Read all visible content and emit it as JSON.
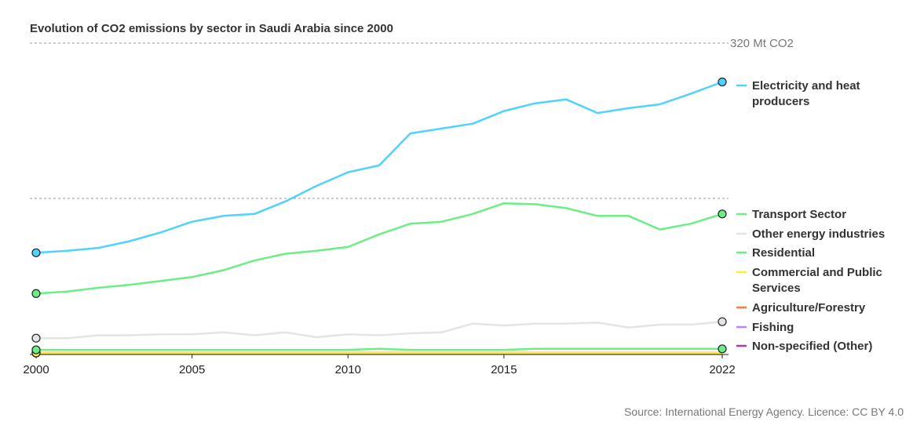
{
  "title": "Evolution of CO2 emissions by sector in Saudi Arabia since 2000",
  "source": "Source: International Energy Agency. Licence: CC BY 4.0",
  "chart_data": {
    "type": "line",
    "title": "Evolution of CO2 emissions by sector in Saudi Arabia since 2000",
    "xlim": [
      2000,
      2022
    ],
    "ylim": [
      0,
      320
    ],
    "y_max_label": "320 Mt CO2",
    "gridlines_y": [
      160,
      320
    ],
    "grid": "horizontal dotted",
    "legend_position": "right",
    "x_ticks": [
      "2000",
      "2005",
      "2010",
      "2015",
      "2022"
    ],
    "x": [
      2000,
      2001,
      2002,
      2003,
      2004,
      2005,
      2006,
      2007,
      2008,
      2009,
      2010,
      2011,
      2012,
      2013,
      2014,
      2015,
      2016,
      2017,
      2018,
      2019,
      2020,
      2021,
      2022
    ],
    "series": [
      {
        "name": "Electricity and heat producers",
        "color": "#4fd2ff",
        "values": [
          104,
          106,
          109,
          116,
          125,
          136,
          142,
          144,
          157,
          173,
          187,
          194,
          227,
          232,
          237,
          250,
          258,
          262,
          248,
          253,
          257,
          268,
          280
        ]
      },
      {
        "name": "Transport Sector",
        "color": "#6bee85",
        "values": [
          62,
          64,
          68,
          71,
          75,
          79,
          86,
          96,
          103,
          106,
          110,
          123,
          134,
          136,
          144,
          155,
          154,
          150,
          142,
          142,
          128,
          134,
          144
        ]
      },
      {
        "name": "Other energy industries",
        "color": "#e4e4e4",
        "values": [
          16,
          16,
          19,
          19,
          20,
          20,
          22,
          19,
          22,
          17,
          20,
          19,
          21,
          22,
          31,
          29,
          31,
          31,
          32,
          27,
          30,
          30,
          33
        ]
      },
      {
        "name": "Residential",
        "color": "#6bee85",
        "values": [
          4,
          4,
          4,
          4,
          4,
          4,
          4,
          4,
          4,
          4,
          4,
          5,
          4,
          4,
          4,
          4,
          5,
          5,
          5,
          5,
          5,
          5,
          5
        ]
      },
      {
        "name": "Commercial and Public Services",
        "color": "#ffeb3b",
        "values": [
          0,
          0,
          0,
          0,
          0,
          0,
          0,
          0,
          0,
          0,
          0,
          0,
          0,
          0,
          0,
          0,
          0,
          0,
          0,
          0,
          0,
          0,
          0
        ]
      },
      {
        "name": "Agriculture/Forestry",
        "color": "#ff7a4d",
        "values": [
          0,
          0,
          0,
          0,
          0,
          0,
          0,
          0,
          0,
          0,
          0,
          0,
          0,
          0,
          0,
          0,
          0,
          0,
          0,
          0,
          0,
          0,
          0
        ]
      },
      {
        "name": "Fishing",
        "color": "#b388ff",
        "values": [
          0,
          0,
          0,
          0,
          0,
          0,
          0,
          0,
          0,
          0,
          0,
          0,
          0,
          0,
          0,
          0,
          0,
          0,
          0,
          0,
          0,
          0,
          0
        ]
      },
      {
        "name": "Non-specified (Other)",
        "color": "#a33fa0",
        "values": [
          0,
          0,
          0,
          0,
          0,
          0,
          0,
          0,
          0,
          0,
          0,
          0,
          0,
          0,
          0,
          0,
          0,
          0,
          0,
          0,
          0,
          0,
          0
        ]
      }
    ],
    "legend": [
      {
        "lines": [
          "Electricity and heat",
          "producers"
        ],
        "color": "#4fd2ff"
      },
      {
        "lines": [
          "Transport Sector"
        ],
        "color": "#6bee85"
      },
      {
        "lines": [
          "Other energy industries"
        ],
        "color": "#e4e4e4"
      },
      {
        "lines": [
          "Residential"
        ],
        "color": "#6bee85"
      },
      {
        "lines": [
          "Commercial and Public",
          "Services"
        ],
        "color": "#ffeb3b"
      },
      {
        "lines": [
          "Agriculture/Forestry"
        ],
        "color": "#ff7a4d"
      },
      {
        "lines": [
          "Fishing"
        ],
        "color": "#b388ff"
      },
      {
        "lines": [
          "Non-specified (Other)"
        ],
        "color": "#a33fa0"
      }
    ]
  }
}
